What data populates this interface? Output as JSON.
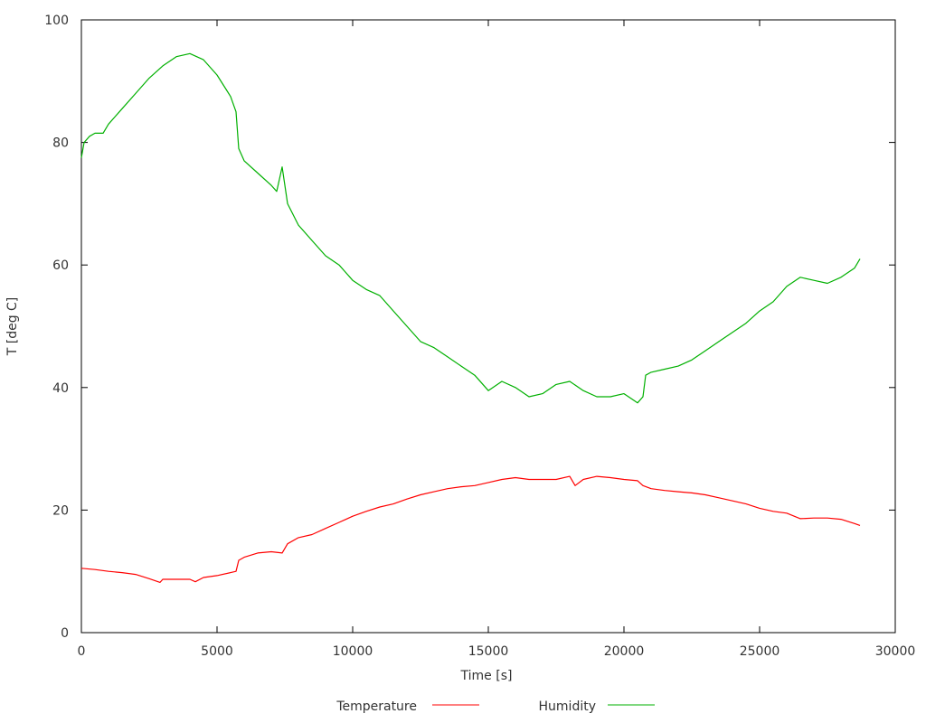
{
  "chart_data": {
    "type": "line",
    "title": "",
    "xlabel": "Time [s]",
    "ylabel": "T [deg C]",
    "xlim": [
      0,
      30000
    ],
    "ylim": [
      0,
      100
    ],
    "xticks": [
      0,
      5000,
      10000,
      15000,
      20000,
      25000,
      30000
    ],
    "yticks": [
      0,
      20,
      40,
      60,
      80,
      100
    ],
    "grid": false,
    "legend": "bottom",
    "series": [
      {
        "name": "Temperature",
        "color": "#ff0000",
        "points": [
          [
            0,
            10.5
          ],
          [
            500,
            10.3
          ],
          [
            1000,
            10.0
          ],
          [
            1500,
            9.8
          ],
          [
            2000,
            9.5
          ],
          [
            2500,
            8.8
          ],
          [
            2900,
            8.2
          ],
          [
            3000,
            8.7
          ],
          [
            3500,
            8.7
          ],
          [
            4000,
            8.7
          ],
          [
            4200,
            8.3
          ],
          [
            4500,
            9.0
          ],
          [
            5000,
            9.3
          ],
          [
            5500,
            9.8
          ],
          [
            5700,
            10.0
          ],
          [
            5800,
            11.8
          ],
          [
            6000,
            12.3
          ],
          [
            6500,
            13.0
          ],
          [
            7000,
            13.2
          ],
          [
            7400,
            13.0
          ],
          [
            7600,
            14.5
          ],
          [
            8000,
            15.5
          ],
          [
            8500,
            16.0
          ],
          [
            9000,
            17.0
          ],
          [
            9500,
            18.0
          ],
          [
            10000,
            19.0
          ],
          [
            10500,
            19.8
          ],
          [
            11000,
            20.5
          ],
          [
            11500,
            21.0
          ],
          [
            12000,
            21.8
          ],
          [
            12500,
            22.5
          ],
          [
            13000,
            23.0
          ],
          [
            13500,
            23.5
          ],
          [
            14000,
            23.8
          ],
          [
            14500,
            24.0
          ],
          [
            15000,
            24.5
          ],
          [
            15500,
            25.0
          ],
          [
            16000,
            25.3
          ],
          [
            16500,
            25.0
          ],
          [
            17000,
            25.0
          ],
          [
            17500,
            25.0
          ],
          [
            18000,
            25.5
          ],
          [
            18200,
            24.0
          ],
          [
            18500,
            25.0
          ],
          [
            19000,
            25.5
          ],
          [
            19500,
            25.3
          ],
          [
            20000,
            25.0
          ],
          [
            20500,
            24.8
          ],
          [
            20700,
            24.0
          ],
          [
            21000,
            23.5
          ],
          [
            21500,
            23.2
          ],
          [
            22000,
            23.0
          ],
          [
            22500,
            22.8
          ],
          [
            23000,
            22.5
          ],
          [
            23500,
            22.0
          ],
          [
            24000,
            21.5
          ],
          [
            24500,
            21.0
          ],
          [
            25000,
            20.3
          ],
          [
            25500,
            19.8
          ],
          [
            26000,
            19.5
          ],
          [
            26500,
            18.6
          ],
          [
            27000,
            18.7
          ],
          [
            27500,
            18.7
          ],
          [
            28000,
            18.5
          ],
          [
            28500,
            17.8
          ],
          [
            28700,
            17.5
          ]
        ]
      },
      {
        "name": "Humidity",
        "color": "#00b000",
        "points": [
          [
            0,
            77.5
          ],
          [
            100,
            80.0
          ],
          [
            300,
            81.0
          ],
          [
            500,
            81.5
          ],
          [
            800,
            81.5
          ],
          [
            1000,
            83.0
          ],
          [
            1500,
            85.5
          ],
          [
            2000,
            88.0
          ],
          [
            2500,
            90.5
          ],
          [
            3000,
            92.5
          ],
          [
            3500,
            94.0
          ],
          [
            4000,
            94.5
          ],
          [
            4500,
            93.5
          ],
          [
            5000,
            91.0
          ],
          [
            5500,
            87.5
          ],
          [
            5700,
            85.0
          ],
          [
            5800,
            79.0
          ],
          [
            6000,
            77.0
          ],
          [
            6500,
            75.0
          ],
          [
            7000,
            73.0
          ],
          [
            7200,
            72.0
          ],
          [
            7400,
            76.0
          ],
          [
            7600,
            70.0
          ],
          [
            8000,
            66.5
          ],
          [
            8500,
            64.0
          ],
          [
            9000,
            61.5
          ],
          [
            9500,
            60.0
          ],
          [
            10000,
            57.5
          ],
          [
            10500,
            56.0
          ],
          [
            11000,
            55.0
          ],
          [
            11500,
            52.5
          ],
          [
            12000,
            50.0
          ],
          [
            12500,
            47.5
          ],
          [
            13000,
            46.5
          ],
          [
            13500,
            45.0
          ],
          [
            14000,
            43.5
          ],
          [
            14500,
            42.0
          ],
          [
            15000,
            39.5
          ],
          [
            15500,
            41.0
          ],
          [
            16000,
            40.0
          ],
          [
            16500,
            38.5
          ],
          [
            17000,
            39.0
          ],
          [
            17500,
            40.5
          ],
          [
            18000,
            41.0
          ],
          [
            18500,
            39.5
          ],
          [
            19000,
            38.5
          ],
          [
            19500,
            38.5
          ],
          [
            20000,
            39.0
          ],
          [
            20500,
            37.5
          ],
          [
            20700,
            38.5
          ],
          [
            20800,
            42.0
          ],
          [
            21000,
            42.5
          ],
          [
            21500,
            43.0
          ],
          [
            22000,
            43.5
          ],
          [
            22500,
            44.5
          ],
          [
            23000,
            46.0
          ],
          [
            23500,
            47.5
          ],
          [
            24000,
            49.0
          ],
          [
            24500,
            50.5
          ],
          [
            25000,
            52.5
          ],
          [
            25500,
            54.0
          ],
          [
            26000,
            56.5
          ],
          [
            26500,
            58.0
          ],
          [
            27000,
            57.5
          ],
          [
            27500,
            57.0
          ],
          [
            28000,
            58.0
          ],
          [
            28500,
            59.5
          ],
          [
            28700,
            61.0
          ]
        ]
      }
    ]
  }
}
